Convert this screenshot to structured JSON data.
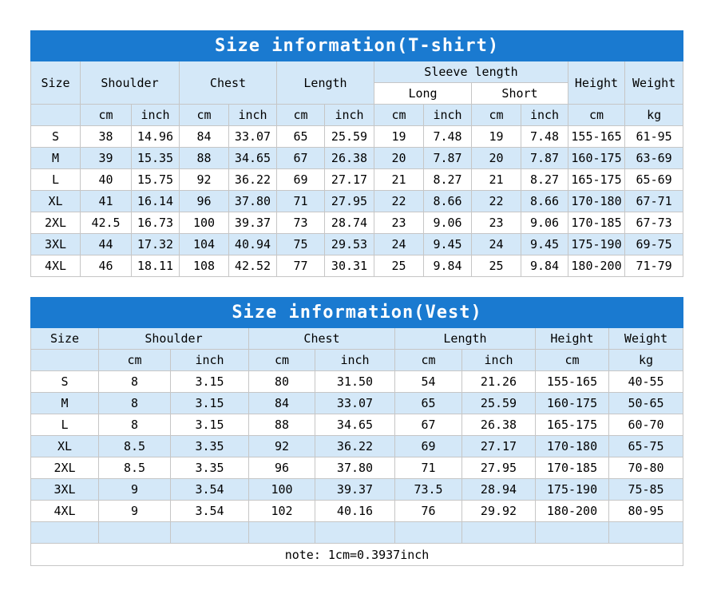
{
  "colors": {
    "title_bg": "#1a7ad0",
    "title_text": "#ffffff",
    "row_highlight": "#d4e8f8",
    "row_plain": "#ffffff",
    "border": "#c6c6c6",
    "text": "#000000"
  },
  "chart_data": [
    {
      "type": "table",
      "title": "Size information(T-shirt)",
      "headers": {
        "size": "Size",
        "shoulder": "Shoulder",
        "chest": "Chest",
        "length": "Length",
        "sleeve_length": "Sleeve length",
        "long": "Long",
        "short": "Short",
        "height": "Height",
        "weight": "Weight"
      },
      "units": [
        "cm",
        "inch",
        "cm",
        "inch",
        "cm",
        "inch",
        "cm",
        "inch",
        "cm",
        "inch",
        "cm",
        "kg"
      ],
      "columns": [
        "Size",
        "Shoulder cm",
        "Shoulder inch",
        "Chest cm",
        "Chest inch",
        "Length cm",
        "Length inch",
        "Sleeve Long cm",
        "Sleeve Long inch",
        "Sleeve Short cm",
        "Sleeve Short inch",
        "Height cm",
        "Weight kg"
      ],
      "rows": [
        [
          "S",
          "38",
          "14.96",
          "84",
          "33.07",
          "65",
          "25.59",
          "19",
          "7.48",
          "19",
          "7.48",
          "155-165",
          "61-95"
        ],
        [
          "M",
          "39",
          "15.35",
          "88",
          "34.65",
          "67",
          "26.38",
          "20",
          "7.87",
          "20",
          "7.87",
          "160-175",
          "63-69"
        ],
        [
          "L",
          "40",
          "15.75",
          "92",
          "36.22",
          "69",
          "27.17",
          "21",
          "8.27",
          "21",
          "8.27",
          "165-175",
          "65-69"
        ],
        [
          "XL",
          "41",
          "16.14",
          "96",
          "37.80",
          "71",
          "27.95",
          "22",
          "8.66",
          "22",
          "8.66",
          "170-180",
          "67-71"
        ],
        [
          "2XL",
          "42.5",
          "16.73",
          "100",
          "39.37",
          "73",
          "28.74",
          "23",
          "9.06",
          "23",
          "9.06",
          "170-185",
          "67-73"
        ],
        [
          "3XL",
          "44",
          "17.32",
          "104",
          "40.94",
          "75",
          "29.53",
          "24",
          "9.45",
          "24",
          "9.45",
          "175-190",
          "69-75"
        ],
        [
          "4XL",
          "46",
          "18.11",
          "108",
          "42.52",
          "77",
          "30.31",
          "25",
          "9.84",
          "25",
          "9.84",
          "180-200",
          "71-79"
        ]
      ]
    },
    {
      "type": "table",
      "title": "Size information(Vest)",
      "headers": {
        "size": "Size",
        "shoulder": "Shoulder",
        "chest": "Chest",
        "length": "Length",
        "height": "Height",
        "weight": "Weight"
      },
      "units": [
        "cm",
        "inch",
        "cm",
        "inch",
        "cm",
        "inch",
        "cm",
        "kg"
      ],
      "columns": [
        "Size",
        "Shoulder cm",
        "Shoulder inch",
        "Chest cm",
        "Chest inch",
        "Length cm",
        "Length inch",
        "Height cm",
        "Weight kg"
      ],
      "rows": [
        [
          "S",
          "8",
          "3.15",
          "80",
          "31.50",
          "54",
          "21.26",
          "155-165",
          "40-55"
        ],
        [
          "M",
          "8",
          "3.15",
          "84",
          "33.07",
          "65",
          "25.59",
          "160-175",
          "50-65"
        ],
        [
          "L",
          "8",
          "3.15",
          "88",
          "34.65",
          "67",
          "26.38",
          "165-175",
          "60-70"
        ],
        [
          "XL",
          "8.5",
          "3.35",
          "92",
          "36.22",
          "69",
          "27.17",
          "170-180",
          "65-75"
        ],
        [
          "2XL",
          "8.5",
          "3.35",
          "96",
          "37.80",
          "71",
          "27.95",
          "170-185",
          "70-80"
        ],
        [
          "3XL",
          "9",
          "3.54",
          "100",
          "39.37",
          "73.5",
          "28.94",
          "175-190",
          "75-85"
        ],
        [
          "4XL",
          "9",
          "3.54",
          "102",
          "40.16",
          "76",
          "29.92",
          "180-200",
          "80-95"
        ]
      ],
      "note": "note: 1cm=0.3937inch"
    }
  ]
}
